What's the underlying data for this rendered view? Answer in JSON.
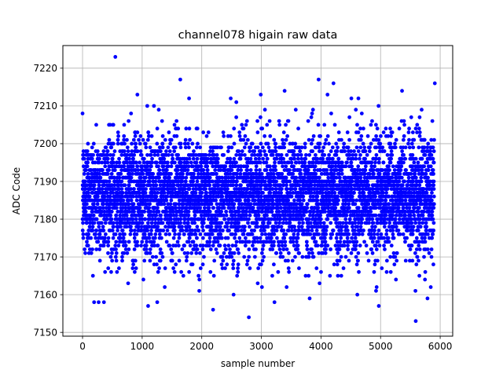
{
  "chart_data": {
    "type": "scatter",
    "title": "channel078 higain raw data",
    "xlabel": "sample number",
    "ylabel": "ADC Code",
    "xlim": [
      -330,
      6210
    ],
    "ylim": [
      7149,
      7226
    ],
    "xticks": [
      0,
      1000,
      2000,
      3000,
      4000,
      5000,
      6000
    ],
    "yticks": [
      7150,
      7160,
      7170,
      7180,
      7190,
      7200,
      7210,
      7220
    ],
    "grid": true,
    "marker_color": "#0000ff",
    "n_points": 5900,
    "approx_mean": 7186,
    "approx_std": 8,
    "points": [
      [
        550,
        7223
      ],
      [
        2190,
        7156
      ],
      [
        2790,
        7154
      ],
      [
        5590,
        7153
      ],
      [
        3960,
        7217
      ],
      [
        1640,
        7217
      ],
      [
        5910,
        7216
      ],
      [
        4210,
        7216
      ],
      [
        2990,
        7213
      ],
      [
        3390,
        7214
      ],
      [
        920,
        7213
      ],
      [
        4110,
        7213
      ],
      [
        270,
        7158
      ],
      [
        3220,
        7158
      ],
      [
        4970,
        7157
      ],
      [
        1100,
        7157
      ],
      [
        4510,
        7212
      ],
      [
        5360,
        7214
      ],
      [
        2580,
        7211
      ],
      [
        3810,
        7159
      ]
    ]
  }
}
